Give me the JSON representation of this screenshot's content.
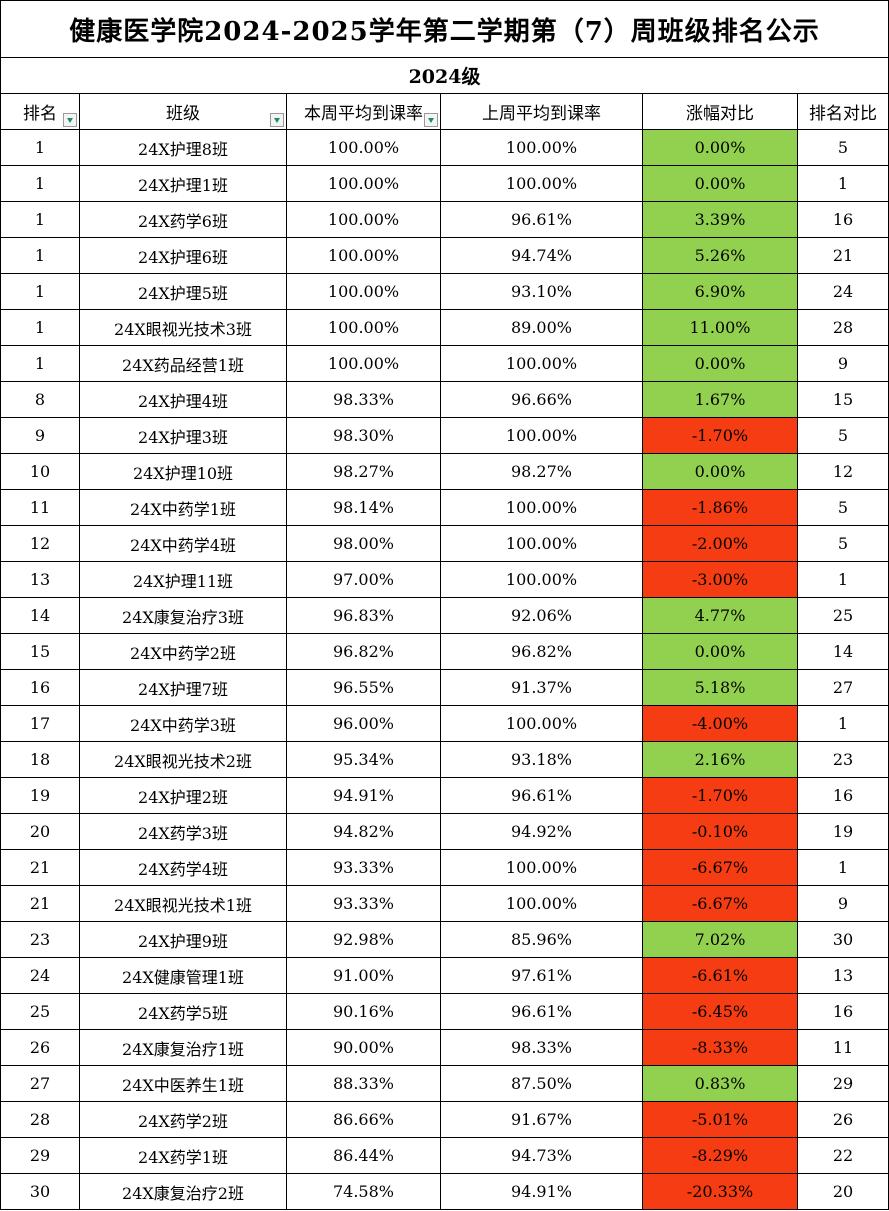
{
  "title": "健康医学院2024-2025学年第二学期第（7）周班级排名公示",
  "grade": "2024级",
  "headers": {
    "rank": "排名",
    "class": "班级",
    "this_week": "本周平均到课率",
    "last_week": "上周平均到课率",
    "change": "涨幅对比",
    "rank_compare": "排名对比"
  },
  "colors": {
    "increase": "#92d050",
    "decrease": "#f53c12",
    "filter_arrow": "#1f8a70"
  },
  "rows": [
    {
      "rank": "1",
      "class": "24X护理8班",
      "this_week": "100.00%",
      "last_week": "100.00%",
      "change": "0.00%",
      "rank_compare": "5"
    },
    {
      "rank": "1",
      "class": "24X护理1班",
      "this_week": "100.00%",
      "last_week": "100.00%",
      "change": "0.00%",
      "rank_compare": "1"
    },
    {
      "rank": "1",
      "class": "24X药学6班",
      "this_week": "100.00%",
      "last_week": "96.61%",
      "change": "3.39%",
      "rank_compare": "16"
    },
    {
      "rank": "1",
      "class": "24X护理6班",
      "this_week": "100.00%",
      "last_week": "94.74%",
      "change": "5.26%",
      "rank_compare": "21"
    },
    {
      "rank": "1",
      "class": "24X护理5班",
      "this_week": "100.00%",
      "last_week": "93.10%",
      "change": "6.90%",
      "rank_compare": "24"
    },
    {
      "rank": "1",
      "class": "24X眼视光技术3班",
      "this_week": "100.00%",
      "last_week": "89.00%",
      "change": "11.00%",
      "rank_compare": "28"
    },
    {
      "rank": "1",
      "class": "24X药品经营1班",
      "this_week": "100.00%",
      "last_week": "100.00%",
      "change": "0.00%",
      "rank_compare": "9"
    },
    {
      "rank": "8",
      "class": "24X护理4班",
      "this_week": "98.33%",
      "last_week": "96.66%",
      "change": "1.67%",
      "rank_compare": "15"
    },
    {
      "rank": "9",
      "class": "24X护理3班",
      "this_week": "98.30%",
      "last_week": "100.00%",
      "change": "-1.70%",
      "rank_compare": "5"
    },
    {
      "rank": "10",
      "class": "24X护理10班",
      "this_week": "98.27%",
      "last_week": "98.27%",
      "change": "0.00%",
      "rank_compare": "12"
    },
    {
      "rank": "11",
      "class": "24X中药学1班",
      "this_week": "98.14%",
      "last_week": "100.00%",
      "change": "-1.86%",
      "rank_compare": "5"
    },
    {
      "rank": "12",
      "class": "24X中药学4班",
      "this_week": "98.00%",
      "last_week": "100.00%",
      "change": "-2.00%",
      "rank_compare": "5"
    },
    {
      "rank": "13",
      "class": "24X护理11班",
      "this_week": "97.00%",
      "last_week": "100.00%",
      "change": "-3.00%",
      "rank_compare": "1"
    },
    {
      "rank": "14",
      "class": "24X康复治疗3班",
      "this_week": "96.83%",
      "last_week": "92.06%",
      "change": "4.77%",
      "rank_compare": "25"
    },
    {
      "rank": "15",
      "class": "24X中药学2班",
      "this_week": "96.82%",
      "last_week": "96.82%",
      "change": "0.00%",
      "rank_compare": "14"
    },
    {
      "rank": "16",
      "class": "24X护理7班",
      "this_week": "96.55%",
      "last_week": "91.37%",
      "change": "5.18%",
      "rank_compare": "27"
    },
    {
      "rank": "17",
      "class": "24X中药学3班",
      "this_week": "96.00%",
      "last_week": "100.00%",
      "change": "-4.00%",
      "rank_compare": "1"
    },
    {
      "rank": "18",
      "class": "24X眼视光技术2班",
      "this_week": "95.34%",
      "last_week": "93.18%",
      "change": "2.16%",
      "rank_compare": "23"
    },
    {
      "rank": "19",
      "class": "24X护理2班",
      "this_week": "94.91%",
      "last_week": "96.61%",
      "change": "-1.70%",
      "rank_compare": "16"
    },
    {
      "rank": "20",
      "class": "24X药学3班",
      "this_week": "94.82%",
      "last_week": "94.92%",
      "change": "-0.10%",
      "rank_compare": "19"
    },
    {
      "rank": "21",
      "class": "24X药学4班",
      "this_week": "93.33%",
      "last_week": "100.00%",
      "change": "-6.67%",
      "rank_compare": "1"
    },
    {
      "rank": "21",
      "class": "24X眼视光技术1班",
      "this_week": "93.33%",
      "last_week": "100.00%",
      "change": "-6.67%",
      "rank_compare": "9"
    },
    {
      "rank": "23",
      "class": "24X护理9班",
      "this_week": "92.98%",
      "last_week": "85.96%",
      "change": "7.02%",
      "rank_compare": "30"
    },
    {
      "rank": "24",
      "class": "24X健康管理1班",
      "this_week": "91.00%",
      "last_week": "97.61%",
      "change": "-6.61%",
      "rank_compare": "13"
    },
    {
      "rank": "25",
      "class": "24X药学5班",
      "this_week": "90.16%",
      "last_week": "96.61%",
      "change": "-6.45%",
      "rank_compare": "16"
    },
    {
      "rank": "26",
      "class": "24X康复治疗1班",
      "this_week": "90.00%",
      "last_week": "98.33%",
      "change": "-8.33%",
      "rank_compare": "11"
    },
    {
      "rank": "27",
      "class": "24X中医养生1班",
      "this_week": "88.33%",
      "last_week": "87.50%",
      "change": "0.83%",
      "rank_compare": "29"
    },
    {
      "rank": "28",
      "class": "24X药学2班",
      "this_week": "86.66%",
      "last_week": "91.67%",
      "change": "-5.01%",
      "rank_compare": "26"
    },
    {
      "rank": "29",
      "class": "24X药学1班",
      "this_week": "86.44%",
      "last_week": "94.73%",
      "change": "-8.29%",
      "rank_compare": "22"
    },
    {
      "rank": "30",
      "class": "24X康复治疗2班",
      "this_week": "74.58%",
      "last_week": "94.91%",
      "change": "-20.33%",
      "rank_compare": "20"
    }
  ]
}
